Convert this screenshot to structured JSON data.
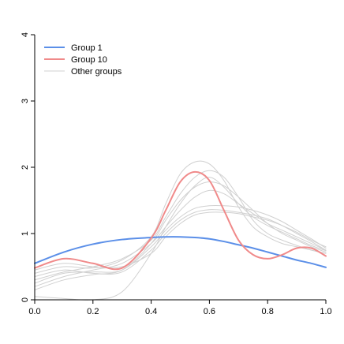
{
  "chart_data": {
    "type": "line",
    "title": "",
    "xlabel": "",
    "ylabel": "",
    "xlim": [
      0.0,
      1.0
    ],
    "ylim": [
      0,
      4
    ],
    "x_ticks": [
      "0.0",
      "0.2",
      "0.4",
      "0.6",
      "0.8",
      "1.0"
    ],
    "y_ticks": [
      "0",
      "1",
      "2",
      "3",
      "4"
    ],
    "grid": false,
    "legend_position": "top-left",
    "legend": [
      {
        "label": "Group 1",
        "color": "#5b8fe8"
      },
      {
        "label": "Group 10",
        "color": "#f08a8a"
      },
      {
        "label": "Other groups",
        "color": "#d0d0d0"
      }
    ],
    "x": [
      0.0,
      0.1,
      0.2,
      0.3,
      0.4,
      0.45,
      0.5,
      0.55,
      0.6,
      0.65,
      0.7,
      0.75,
      0.8,
      0.85,
      0.9,
      0.95,
      1.0
    ],
    "series": [
      {
        "name": "Group 1",
        "color": "#5b8fe8",
        "highlight": true,
        "values": [
          0.55,
          0.72,
          0.84,
          0.91,
          0.94,
          0.95,
          0.95,
          0.94,
          0.92,
          0.88,
          0.83,
          0.78,
          0.72,
          0.66,
          0.6,
          0.55,
          0.49
        ]
      },
      {
        "name": "Group 10",
        "color": "#f08a8a",
        "highlight": true,
        "values": [
          0.48,
          0.62,
          0.55,
          0.48,
          0.93,
          1.35,
          1.78,
          1.93,
          1.8,
          1.35,
          0.9,
          0.68,
          0.62,
          0.68,
          0.78,
          0.78,
          0.66
        ]
      },
      {
        "color": "#d0d0d0",
        "values": [
          0.4,
          0.5,
          0.48,
          0.6,
          0.95,
          1.45,
          1.9,
          2.08,
          2.05,
          1.8,
          1.4,
          1.1,
          0.95,
          0.85,
          0.8,
          0.75,
          0.7
        ]
      },
      {
        "color": "#d0d0d0",
        "values": [
          0.3,
          0.42,
          0.5,
          0.62,
          0.9,
          1.25,
          1.6,
          1.85,
          1.95,
          1.85,
          1.55,
          1.2,
          1.0,
          0.9,
          0.82,
          0.75,
          0.7
        ]
      },
      {
        "color": "#d0d0d0",
        "values": [
          0.2,
          0.35,
          0.45,
          0.55,
          0.85,
          1.1,
          1.35,
          1.55,
          1.65,
          1.6,
          1.45,
          1.3,
          1.15,
          1.05,
          0.95,
          0.85,
          0.75
        ]
      },
      {
        "color": "#d0d0d0",
        "values": [
          0.25,
          0.4,
          0.42,
          0.45,
          0.8,
          1.05,
          1.25,
          1.38,
          1.42,
          1.42,
          1.4,
          1.35,
          1.28,
          1.18,
          1.05,
          0.92,
          0.78
        ]
      },
      {
        "color": "#d0d0d0",
        "values": [
          0.35,
          0.45,
          0.4,
          0.42,
          0.75,
          1.0,
          1.2,
          1.32,
          1.36,
          1.35,
          1.32,
          1.28,
          1.22,
          1.12,
          1.0,
          0.88,
          0.75
        ]
      },
      {
        "color": "#d0d0d0",
        "values": [
          0.45,
          0.55,
          0.5,
          0.5,
          0.7,
          0.95,
          1.15,
          1.28,
          1.32,
          1.32,
          1.3,
          1.25,
          1.2,
          1.12,
          1.02,
          0.9,
          0.8
        ]
      },
      {
        "color": "#d0d0d0",
        "values": [
          0.15,
          0.3,
          0.38,
          0.45,
          0.85,
          1.2,
          1.5,
          1.7,
          1.78,
          1.72,
          1.55,
          1.35,
          1.15,
          1.0,
          0.9,
          0.8,
          0.72
        ]
      },
      {
        "color": "#d0d0d0",
        "values": [
          0.05,
          0.02,
          0.0,
          0.12,
          0.7,
          1.1,
          1.45,
          1.72,
          1.85,
          1.7,
          1.45,
          1.25,
          1.12,
          1.02,
          0.92,
          0.82,
          0.74
        ]
      }
    ]
  }
}
